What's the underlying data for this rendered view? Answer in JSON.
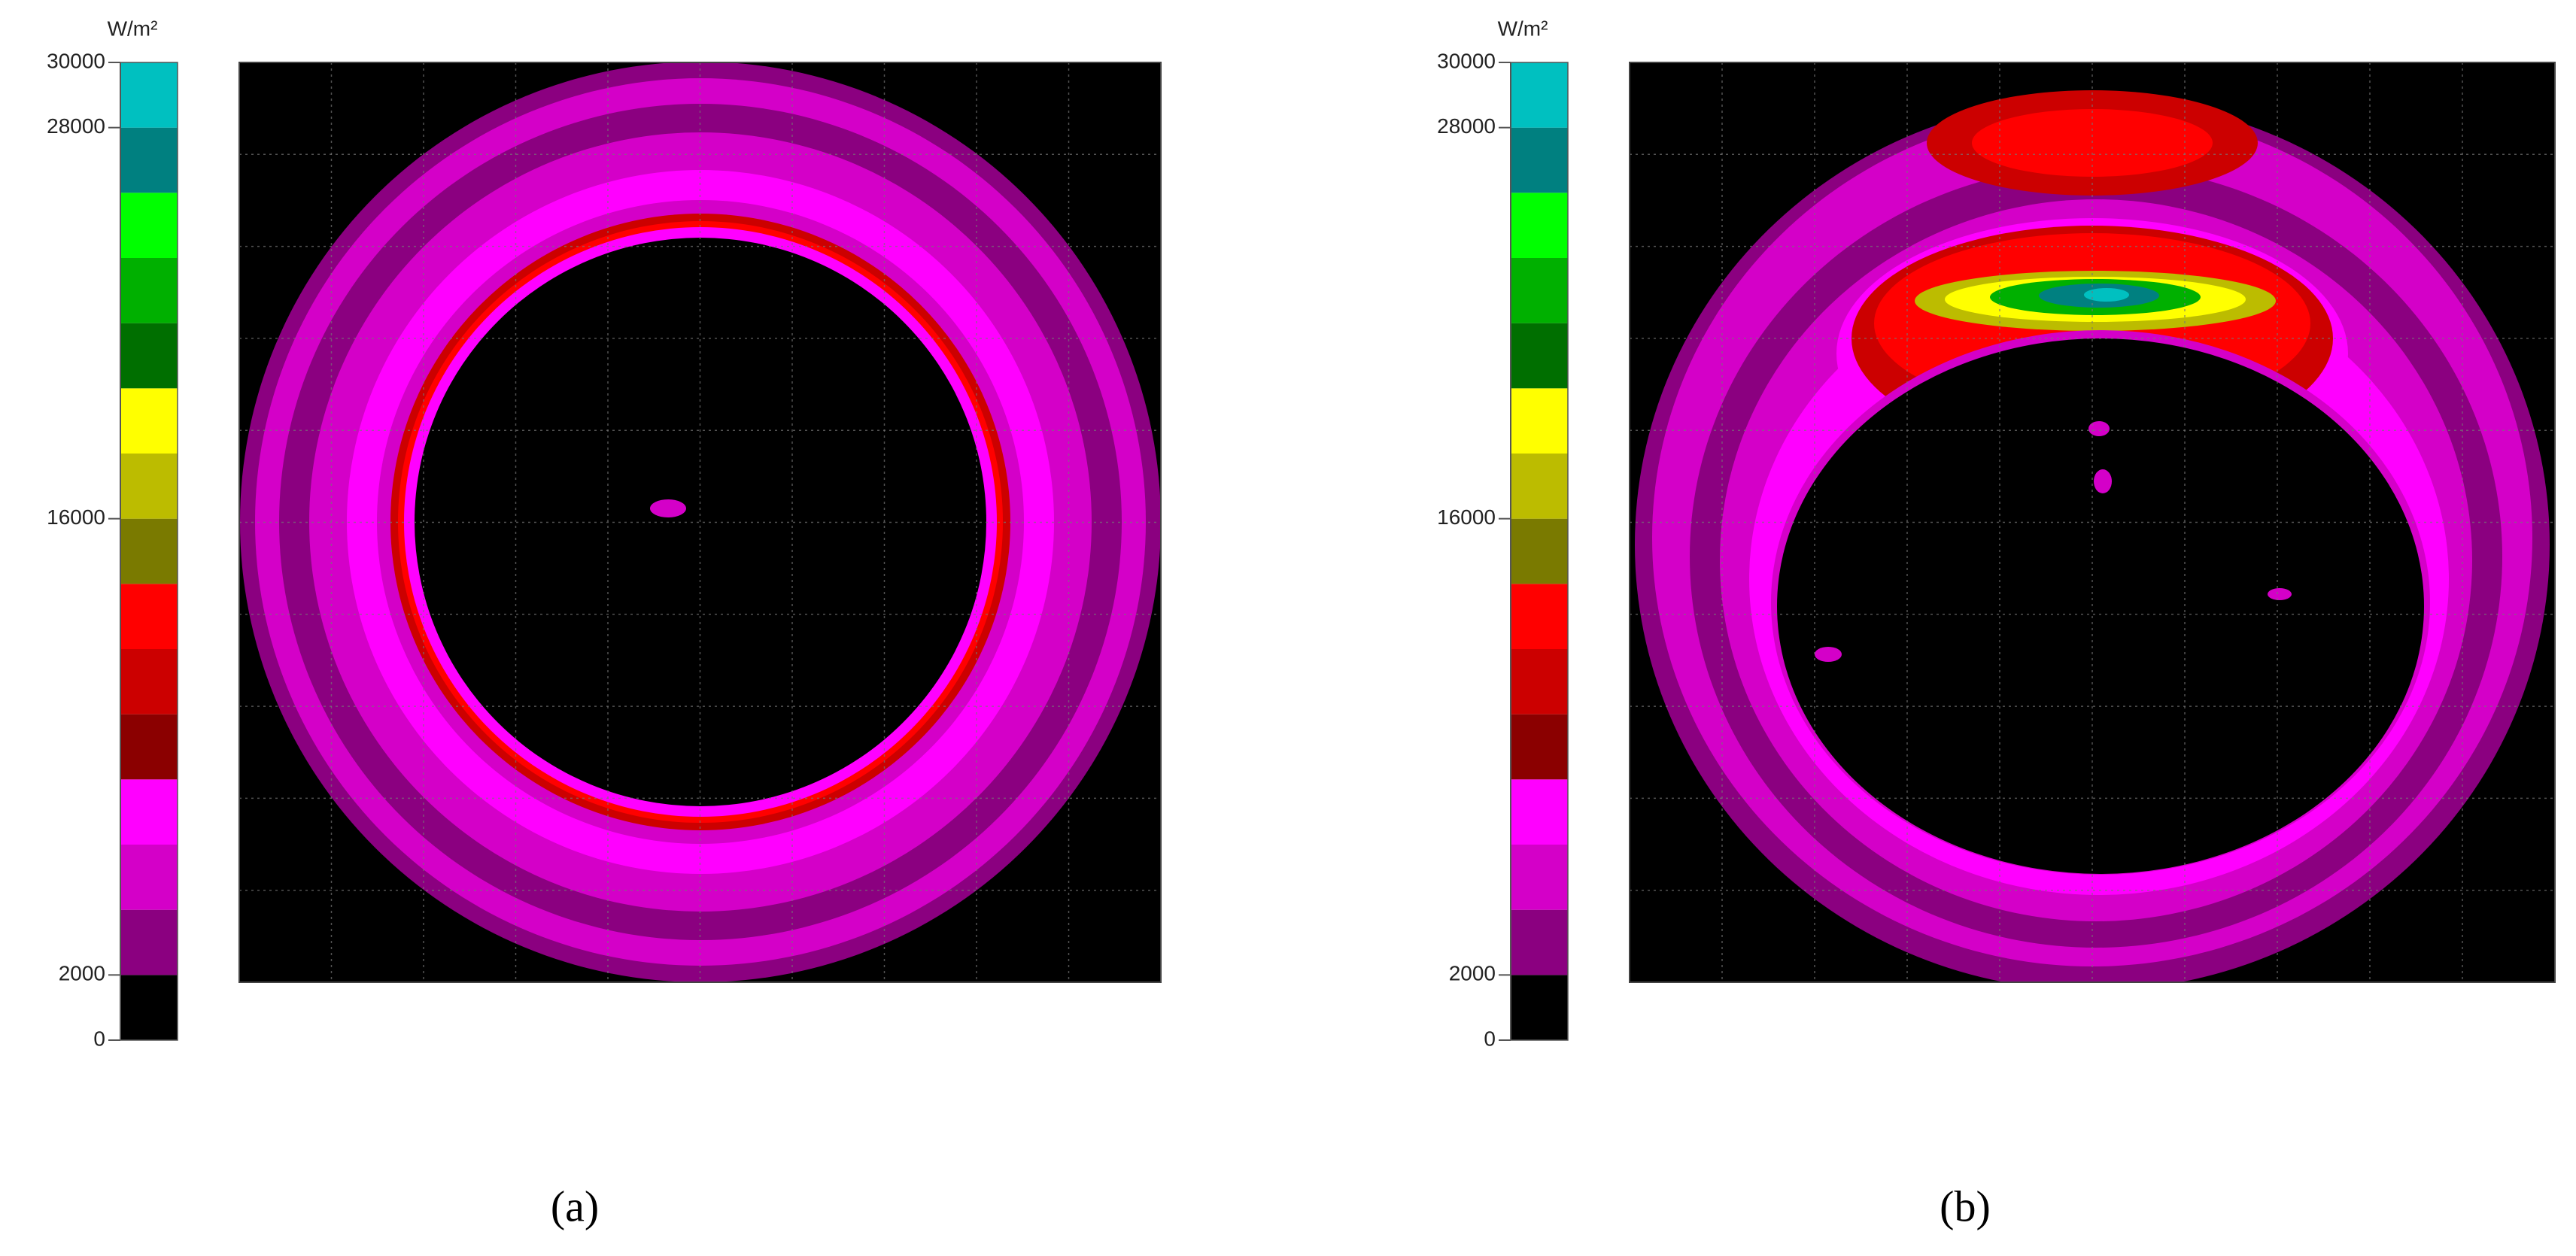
{
  "chart_data": [
    {
      "type": "heatmap",
      "colorbar_label": "W/m²",
      "caption": "(a)",
      "zlim": [
        0,
        30000
      ],
      "zticks": [
        0,
        2000,
        16000,
        28000,
        30000
      ],
      "levels": [
        0,
        2000,
        4000,
        6000,
        8000,
        10000,
        12000,
        14000,
        16000,
        18000,
        20000,
        22000,
        24000,
        26000,
        28000,
        30000
      ],
      "colors": [
        "#000000",
        "#8b0080",
        "#d400c8",
        "#ff00ff",
        "#8b0000",
        "#cc0000",
        "#ff0000",
        "#7a7a00",
        "#bcbc00",
        "#ffff00",
        "#006f00",
        "#00b000",
        "#00ff00",
        "#008080",
        "#00c0c0"
      ]
    },
    {
      "type": "heatmap",
      "colorbar_label": "W/m²",
      "caption": "(b)",
      "zlim": [
        0,
        30000
      ],
      "zticks": [
        0,
        2000,
        16000,
        28000,
        30000
      ],
      "levels": [
        0,
        2000,
        4000,
        6000,
        8000,
        10000,
        12000,
        14000,
        16000,
        18000,
        20000,
        22000,
        24000,
        26000,
        28000,
        30000
      ],
      "colors": [
        "#000000",
        "#8b0080",
        "#d400c8",
        "#ff00ff",
        "#8b0000",
        "#cc0000",
        "#ff0000",
        "#7a7a00",
        "#bcbc00",
        "#ffff00",
        "#006f00",
        "#00b000",
        "#00ff00",
        "#008080",
        "#00c0c0"
      ]
    }
  ]
}
